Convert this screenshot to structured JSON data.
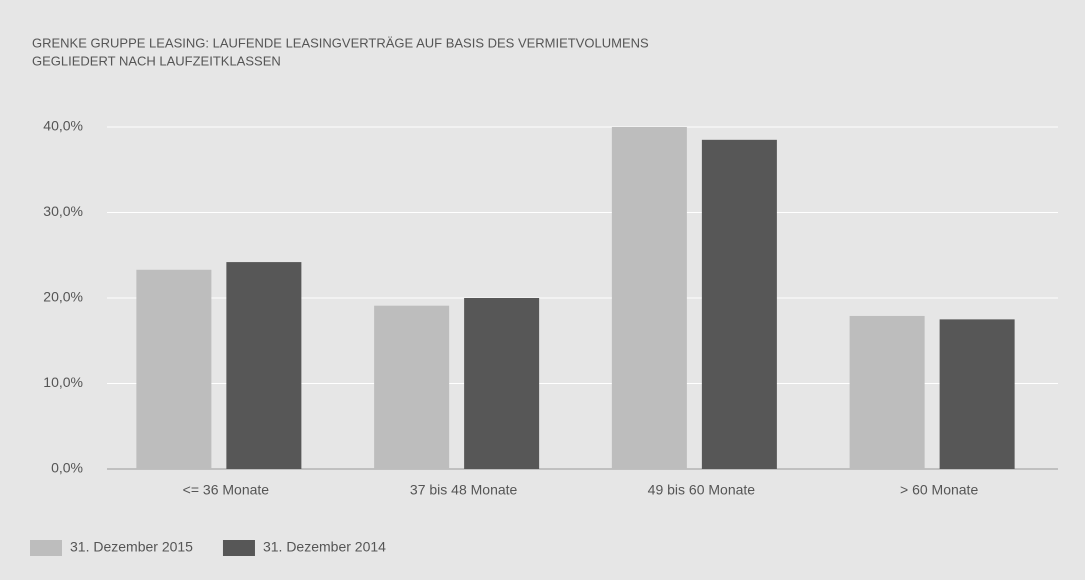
{
  "chart_data": {
    "type": "bar",
    "title": "GRENKE GRUPPE LEASING: LAUFENDE LEASINGVERTRÄGE AUF BASIS DES VERMIETVOLUMENS",
    "subtitle": "GEGLIEDERT NACH LAUFZEITKLASSEN",
    "categories": [
      "<= 36 Monate",
      "37 bis 48 Monate",
      "49 bis 60 Monate",
      "> 60 Monate"
    ],
    "series": [
      {
        "name": "31. Dezember 2015",
        "color": "#bdbdbd",
        "values": [
          23.3,
          19.1,
          40.0,
          17.9
        ]
      },
      {
        "name": "31. Dezember 2014",
        "color": "#575757",
        "values": [
          24.2,
          20.0,
          38.5,
          17.5
        ]
      }
    ],
    "ylim": [
      0,
      40
    ],
    "yticks": [
      {
        "value": 0,
        "label": "0,0%"
      },
      {
        "value": 10,
        "label": "10,0%"
      },
      {
        "value": 20,
        "label": "20,0%"
      },
      {
        "value": 30,
        "label": "30,0%"
      },
      {
        "value": 40,
        "label": "40,0%"
      }
    ],
    "grid": true,
    "legend": "bottom-left"
  }
}
